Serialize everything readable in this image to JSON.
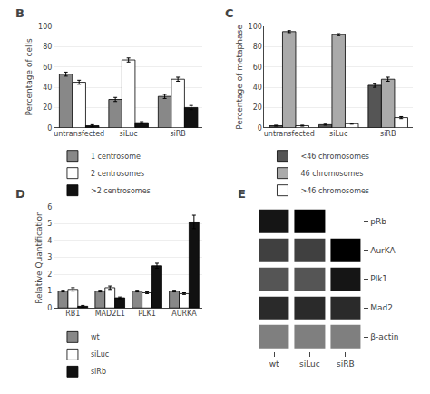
{
  "chart_data": [
    {
      "type": "bar",
      "title": "B",
      "categories": [
        "untransfected",
        "siLuc",
        "siRB"
      ],
      "series": [
        {
          "name": "1 centrosome",
          "color": "#888888",
          "values": [
            53,
            28,
            31
          ],
          "errors": [
            2,
            2,
            2
          ]
        },
        {
          "name": "2 centrosomes",
          "color": "#ffffff",
          "values": [
            45,
            67,
            48
          ],
          "errors": [
            2,
            2,
            2
          ]
        },
        {
          "name": ">2 centrosomes",
          "color": "#111111",
          "values": [
            2,
            5,
            20
          ],
          "errors": [
            1,
            1,
            2
          ]
        }
      ],
      "ylabel": "Percentage of cells",
      "ylim": [
        0,
        100
      ],
      "yticks": [
        0,
        20,
        40,
        60,
        80,
        100
      ],
      "grid": true
    },
    {
      "type": "bar",
      "title": "C",
      "categories": [
        "untransfected",
        "siLuc",
        "siRB"
      ],
      "series": [
        {
          "name": "<46 chromosomes",
          "color": "#555555",
          "values": [
            2,
            3,
            42
          ],
          "errors": [
            0.5,
            0.5,
            2
          ]
        },
        {
          "name": "46 chromosomes",
          "color": "#aaaaaa",
          "values": [
            95,
            92,
            48
          ],
          "errors": [
            1,
            1,
            2
          ]
        },
        {
          "name": ">46 chromosomes",
          "color": "#ffffff",
          "values": [
            2,
            4,
            10
          ],
          "errors": [
            0.5,
            0.5,
            1
          ]
        }
      ],
      "ylabel": "Percentage of metaphase",
      "ylim": [
        0,
        100
      ],
      "yticks": [
        0,
        20,
        40,
        60,
        80,
        100
      ],
      "grid": true
    },
    {
      "type": "bar",
      "title": "D",
      "categories": [
        "RB1",
        "MAD2L1",
        "PLK1",
        "AURKA"
      ],
      "series": [
        {
          "name": "wt",
          "color": "#888888",
          "values": [
            1.0,
            1.0,
            1.0,
            1.0
          ],
          "errors": [
            0.05,
            0.05,
            0.05,
            0.05
          ]
        },
        {
          "name": "siLuc",
          "color": "#ffffff",
          "values": [
            1.1,
            1.2,
            0.9,
            0.85
          ],
          "errors": [
            0.1,
            0.1,
            0.05,
            0.05
          ]
        },
        {
          "name": "siRb",
          "color": "#111111",
          "values": [
            0.1,
            0.6,
            2.5,
            5.1
          ],
          "errors": [
            0.05,
            0.05,
            0.15,
            0.4
          ]
        }
      ],
      "ylabel": "Relative Quantification",
      "ylim": [
        0,
        6
      ],
      "yticks": [
        0,
        1,
        2,
        3,
        4,
        5,
        6
      ],
      "grid": true
    },
    {
      "type": "heatmap",
      "title": "E",
      "x": [
        "wt",
        "siLuc",
        "siRB"
      ],
      "y": [
        "pRb",
        "AurKA",
        "Plk1",
        "Mad2",
        "β-actin"
      ],
      "cells": [
        [
          0.7,
          0.75,
          0.15
        ],
        [
          0.6,
          0.6,
          0.75
        ],
        [
          0.55,
          0.55,
          0.7
        ],
        [
          0.65,
          0.65,
          0.65
        ],
        [
          0.45,
          0.45,
          0.45
        ]
      ]
    }
  ]
}
